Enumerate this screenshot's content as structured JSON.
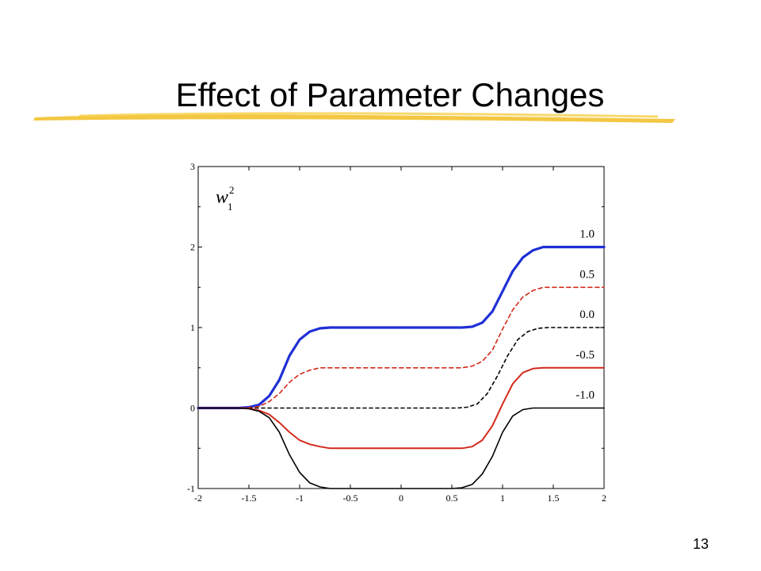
{
  "slide": {
    "title": "Effect of Parameter Changes",
    "page_number": "13",
    "highlight_color": "#f2c12e"
  },
  "chart_data": {
    "type": "line",
    "xlim": [
      -2,
      2
    ],
    "ylim": [
      -1,
      3
    ],
    "xticks": [
      "-2",
      "-1.5",
      "-1",
      "-0.5",
      "0",
      "0.5",
      "1",
      "1.5",
      "2"
    ],
    "yticks": [
      "-1",
      "0",
      "1",
      "2",
      "3"
    ],
    "grid": false,
    "ylabel_base": "w",
    "ylabel_sub": "1",
    "ylabel_sup": "2",
    "series": [
      {
        "name": "1.0",
        "color": "#1f2fd6",
        "dash": "",
        "width": 3.2,
        "points": [
          [
            -2,
            0
          ],
          [
            -1.6,
            0
          ],
          [
            -1.5,
            0.01
          ],
          [
            -1.4,
            0.04
          ],
          [
            -1.3,
            0.15
          ],
          [
            -1.2,
            0.35
          ],
          [
            -1.1,
            0.65
          ],
          [
            -1.0,
            0.85
          ],
          [
            -0.9,
            0.95
          ],
          [
            -0.8,
            0.99
          ],
          [
            -0.7,
            1.0
          ],
          [
            0.6,
            1.0
          ],
          [
            0.7,
            1.01
          ],
          [
            0.8,
            1.06
          ],
          [
            0.9,
            1.2
          ],
          [
            1.0,
            1.45
          ],
          [
            1.1,
            1.7
          ],
          [
            1.2,
            1.87
          ],
          [
            1.3,
            1.96
          ],
          [
            1.4,
            2.0
          ],
          [
            2,
            2.0
          ]
        ]
      },
      {
        "name": "0.5",
        "color": "#d42a1c",
        "dash": "5,4",
        "width": 1.6,
        "points": [
          [
            -2,
            0
          ],
          [
            -1.6,
            0
          ],
          [
            -1.5,
            0.005
          ],
          [
            -1.4,
            0.02
          ],
          [
            -1.3,
            0.08
          ],
          [
            -1.2,
            0.18
          ],
          [
            -1.1,
            0.32
          ],
          [
            -1.0,
            0.42
          ],
          [
            -0.9,
            0.47
          ],
          [
            -0.8,
            0.5
          ],
          [
            -0.7,
            0.5
          ],
          [
            0.6,
            0.5
          ],
          [
            0.7,
            0.52
          ],
          [
            0.8,
            0.58
          ],
          [
            0.9,
            0.72
          ],
          [
            1.0,
            0.98
          ],
          [
            1.1,
            1.22
          ],
          [
            1.2,
            1.38
          ],
          [
            1.3,
            1.46
          ],
          [
            1.4,
            1.5
          ],
          [
            2,
            1.5
          ]
        ]
      },
      {
        "name": "0.0",
        "color": "#000000",
        "dash": "4,4",
        "width": 1.6,
        "points": [
          [
            -2,
            0
          ],
          [
            0.55,
            0
          ],
          [
            0.65,
            0.01
          ],
          [
            0.75,
            0.05
          ],
          [
            0.85,
            0.18
          ],
          [
            0.95,
            0.4
          ],
          [
            1.05,
            0.65
          ],
          [
            1.15,
            0.85
          ],
          [
            1.25,
            0.95
          ],
          [
            1.35,
            0.99
          ],
          [
            1.45,
            1.0
          ],
          [
            2,
            1.0
          ]
        ]
      },
      {
        "name": "-0.5",
        "color": "#d42a1c",
        "dash": "",
        "width": 2.0,
        "points": [
          [
            -2,
            0
          ],
          [
            -1.6,
            0
          ],
          [
            -1.5,
            -0.005
          ],
          [
            -1.4,
            -0.03
          ],
          [
            -1.3,
            -0.08
          ],
          [
            -1.2,
            -0.18
          ],
          [
            -1.1,
            -0.3
          ],
          [
            -1.0,
            -0.4
          ],
          [
            -0.9,
            -0.45
          ],
          [
            -0.8,
            -0.48
          ],
          [
            -0.7,
            -0.5
          ],
          [
            0.6,
            -0.5
          ],
          [
            0.7,
            -0.48
          ],
          [
            0.8,
            -0.4
          ],
          [
            0.9,
            -0.22
          ],
          [
            1.0,
            0.05
          ],
          [
            1.1,
            0.3
          ],
          [
            1.2,
            0.44
          ],
          [
            1.3,
            0.49
          ],
          [
            1.4,
            0.5
          ],
          [
            2,
            0.5
          ]
        ]
      },
      {
        "name": "-1.0",
        "color": "#000000",
        "dash": "",
        "width": 1.6,
        "points": [
          [
            -2,
            0
          ],
          [
            -1.6,
            0
          ],
          [
            -1.5,
            -0.01
          ],
          [
            -1.4,
            -0.04
          ],
          [
            -1.3,
            -0.12
          ],
          [
            -1.2,
            -0.3
          ],
          [
            -1.1,
            -0.58
          ],
          [
            -1.0,
            -0.8
          ],
          [
            -0.9,
            -0.93
          ],
          [
            -0.8,
            -0.98
          ],
          [
            -0.7,
            -1.0
          ],
          [
            0.5,
            -1.0
          ],
          [
            0.6,
            -0.99
          ],
          [
            0.7,
            -0.95
          ],
          [
            0.8,
            -0.82
          ],
          [
            0.9,
            -0.6
          ],
          [
            1.0,
            -0.3
          ],
          [
            1.1,
            -0.1
          ],
          [
            1.2,
            -0.02
          ],
          [
            1.3,
            0
          ],
          [
            2,
            0
          ]
        ]
      }
    ]
  }
}
